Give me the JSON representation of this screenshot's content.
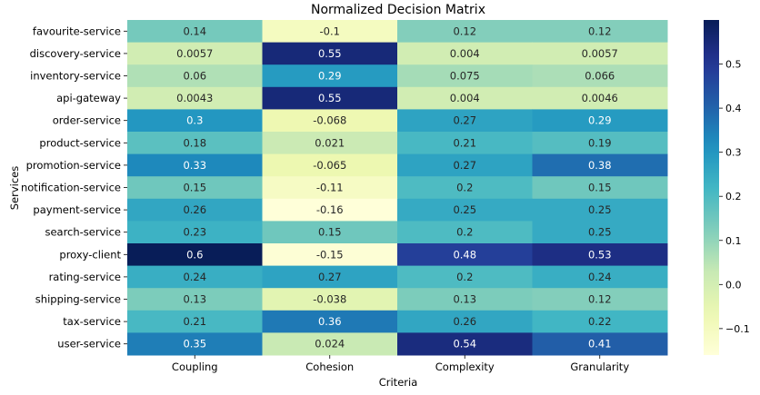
{
  "chart_data": {
    "type": "heatmap",
    "title": "Normalized Decision Matrix",
    "xlabel": "Criteria",
    "ylabel": "Services",
    "columns": [
      "Coupling",
      "Cohesion",
      "Complexity",
      "Granularity"
    ],
    "rows": [
      "favourite-service",
      "discovery-service",
      "inventory-service",
      "api-gateway",
      "order-service",
      "product-service",
      "promotion-service",
      "notification-service",
      "payment-service",
      "search-service",
      "proxy-client",
      "rating-service",
      "shipping-service",
      "tax-service",
      "user-service"
    ],
    "values": [
      [
        0.14,
        -0.1,
        0.12,
        0.12
      ],
      [
        0.0057,
        0.55,
        0.004,
        0.0057
      ],
      [
        0.06,
        0.29,
        0.075,
        0.066
      ],
      [
        0.0043,
        0.55,
        0.004,
        0.0046
      ],
      [
        0.3,
        -0.068,
        0.27,
        0.29
      ],
      [
        0.18,
        0.021,
        0.21,
        0.19
      ],
      [
        0.33,
        -0.065,
        0.27,
        0.38
      ],
      [
        0.15,
        -0.11,
        0.2,
        0.15
      ],
      [
        0.26,
        -0.16,
        0.25,
        0.25
      ],
      [
        0.23,
        0.15,
        0.2,
        0.25
      ],
      [
        0.6,
        -0.15,
        0.48,
        0.53
      ],
      [
        0.24,
        0.27,
        0.2,
        0.24
      ],
      [
        0.13,
        -0.038,
        0.13,
        0.12
      ],
      [
        0.21,
        0.36,
        0.26,
        0.22
      ],
      [
        0.35,
        0.024,
        0.54,
        0.41
      ]
    ],
    "labels": [
      [
        "0.14",
        "-0.1",
        "0.12",
        "0.12"
      ],
      [
        "0.0057",
        "0.55",
        "0.004",
        "0.0057"
      ],
      [
        "0.06",
        "0.29",
        "0.075",
        "0.066"
      ],
      [
        "0.0043",
        "0.55",
        "0.004",
        "0.0046"
      ],
      [
        "0.3",
        "-0.068",
        "0.27",
        "0.29"
      ],
      [
        "0.18",
        "0.021",
        "0.21",
        "0.19"
      ],
      [
        "0.33",
        "-0.065",
        "0.27",
        "0.38"
      ],
      [
        "0.15",
        "-0.11",
        "0.2",
        "0.15"
      ],
      [
        "0.26",
        "-0.16",
        "0.25",
        "0.25"
      ],
      [
        "0.23",
        "0.15",
        "0.2",
        "0.25"
      ],
      [
        "0.6",
        "-0.15",
        "0.48",
        "0.53"
      ],
      [
        "0.24",
        "0.27",
        "0.2",
        "0.24"
      ],
      [
        "0.13",
        "-0.038",
        "0.13",
        "0.12"
      ],
      [
        "0.21",
        "0.36",
        "0.26",
        "0.22"
      ],
      [
        "0.35",
        "0.024",
        "0.54",
        "0.41"
      ]
    ],
    "colormap": "YlGnBu",
    "vmin": -0.16,
    "vmax": 0.6,
    "colorbar_ticks": [
      -0.1,
      0.0,
      0.1,
      0.2,
      0.3,
      0.4,
      0.5
    ],
    "colorbar_tick_labels": [
      "−0.1",
      "0.0",
      "0.1",
      "0.2",
      "0.3",
      "0.4",
      "0.5"
    ],
    "colorbar_position": "right"
  }
}
